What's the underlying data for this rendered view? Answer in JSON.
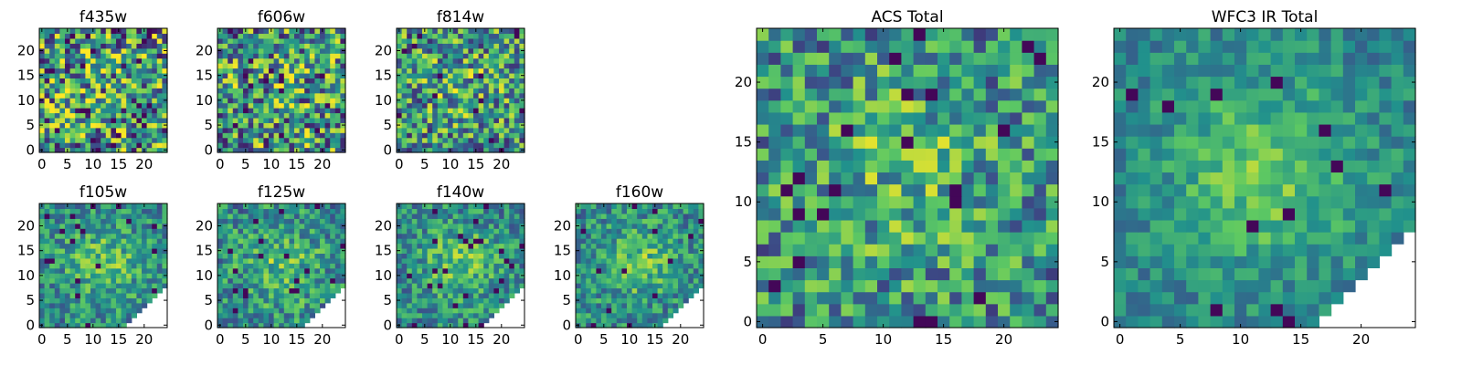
{
  "chart_data": [
    {
      "type": "heatmap",
      "title": "f435w",
      "xlim": [
        -0.5,
        24.5
      ],
      "ylim": [
        -0.5,
        24.5
      ],
      "xticks": [
        0,
        5,
        10,
        15,
        20
      ],
      "yticks": [
        0,
        5,
        10,
        15,
        20
      ],
      "grid": false,
      "seed": 11,
      "smooth": 0.1,
      "noise": 0.9,
      "dark": 0.045,
      "mask": 0
    },
    {
      "type": "heatmap",
      "title": "f606w",
      "xlim": [
        -0.5,
        24.5
      ],
      "ylim": [
        -0.5,
        24.5
      ],
      "xticks": [
        0,
        5,
        10,
        15,
        20
      ],
      "yticks": [
        0,
        5,
        10,
        15,
        20
      ],
      "grid": false,
      "seed": 23,
      "smooth": 0.15,
      "noise": 0.85,
      "dark": 0.02,
      "mask": 0
    },
    {
      "type": "heatmap",
      "title": "f814w",
      "xlim": [
        -0.5,
        24.5
      ],
      "ylim": [
        -0.5,
        24.5
      ],
      "xticks": [
        0,
        5,
        10,
        15,
        20
      ],
      "yticks": [
        0,
        5,
        10,
        15,
        20
      ],
      "grid": false,
      "seed": 37,
      "smooth": 0.25,
      "noise": 0.75,
      "dark": 0.02,
      "mask": 0
    },
    {
      "type": "heatmap",
      "title": "f105w",
      "xlim": [
        -0.5,
        24.5
      ],
      "ylim": [
        -0.5,
        24.5
      ],
      "xticks": [
        0,
        5,
        10,
        15,
        20
      ],
      "yticks": [
        0,
        5,
        10,
        15,
        20
      ],
      "grid": false,
      "seed": 41,
      "smooth": 0.55,
      "noise": 0.45,
      "dark": 0.035,
      "mask": 1
    },
    {
      "type": "heatmap",
      "title": "f125w",
      "xlim": [
        -0.5,
        24.5
      ],
      "ylim": [
        -0.5,
        24.5
      ],
      "xticks": [
        0,
        5,
        10,
        15,
        20
      ],
      "yticks": [
        0,
        5,
        10,
        15,
        20
      ],
      "grid": false,
      "seed": 53,
      "smooth": 0.5,
      "noise": 0.5,
      "dark": 0.03,
      "mask": 1
    },
    {
      "type": "heatmap",
      "title": "f140w",
      "xlim": [
        -0.5,
        24.5
      ],
      "ylim": [
        -0.5,
        24.5
      ],
      "xticks": [
        0,
        5,
        10,
        15,
        20
      ],
      "yticks": [
        0,
        5,
        10,
        15,
        20
      ],
      "grid": false,
      "seed": 67,
      "smooth": 0.55,
      "noise": 0.45,
      "dark": 0.035,
      "mask": 1
    },
    {
      "type": "heatmap",
      "title": "f160w",
      "xlim": [
        -0.5,
        24.5
      ],
      "ylim": [
        -0.5,
        24.5
      ],
      "xticks": [
        0,
        5,
        10,
        15,
        20
      ],
      "yticks": [
        0,
        5,
        10,
        15,
        20
      ],
      "grid": false,
      "seed": 79,
      "smooth": 0.55,
      "noise": 0.45,
      "dark": 0.03,
      "mask": 1
    },
    {
      "type": "heatmap",
      "title": "ACS Total",
      "xlim": [
        -0.5,
        24.5
      ],
      "ylim": [
        -0.5,
        24.5
      ],
      "xticks": [
        0,
        5,
        10,
        15,
        20
      ],
      "yticks": [
        0,
        5,
        10,
        15,
        20
      ],
      "grid": false,
      "seed": 97,
      "smooth": 0.4,
      "noise": 0.6,
      "dark": 0.035,
      "mask": 0
    },
    {
      "type": "heatmap",
      "title": "WFC3 IR Total",
      "xlim": [
        -0.5,
        24.5
      ],
      "ylim": [
        -0.5,
        24.5
      ],
      "xticks": [
        0,
        5,
        10,
        15,
        20
      ],
      "yticks": [
        0,
        5,
        10,
        15,
        20
      ],
      "grid": false,
      "seed": 131,
      "smooth": 0.7,
      "noise": 0.3,
      "dark": 0.03,
      "mask": 1
    }
  ],
  "colormap": [
    "#440154",
    "#3b528b",
    "#21918c",
    "#5ec962",
    "#fde725"
  ]
}
